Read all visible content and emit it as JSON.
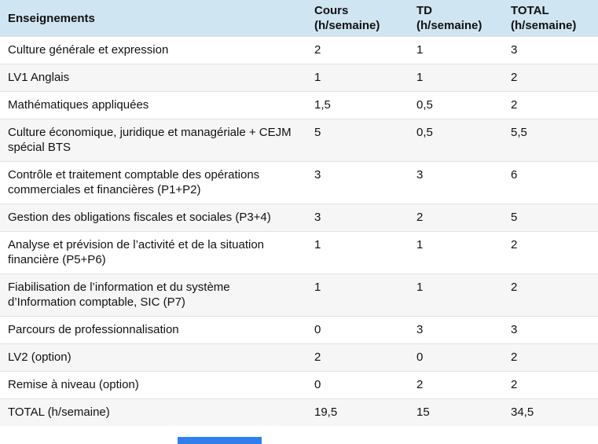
{
  "colors": {
    "header_bg": "#cfe5f1",
    "row_alt_bg": "#f6f6f6",
    "divider": "#e2e2e2",
    "text": "#111111",
    "scroll_indicator": "#2f80ed"
  },
  "table": {
    "headers": {
      "enseignements": "Enseignements",
      "cours": "Cours (h/semaine)",
      "td": "TD (h/semaine)",
      "total": "TOTAL (h/semaine)"
    },
    "rows": [
      {
        "label": "Culture générale et expression",
        "cours": "2",
        "td": "1",
        "total": "3"
      },
      {
        "label": "LV1 Anglais",
        "cours": "1",
        "td": "1",
        "total": "2"
      },
      {
        "label": "Mathématiques appliquées",
        "cours": "1,5",
        "td": "0,5",
        "total": "2"
      },
      {
        "label": "Culture économique, juridique et managériale + CEJM spécial BTS",
        "cours": "5",
        "td": "0,5",
        "total": "5,5"
      },
      {
        "label": "Contrôle et traitement comptable des opérations commerciales et financières (P1+P2)",
        "cours": "3",
        "td": "3",
        "total": "6"
      },
      {
        "label": "Gestion des obligations fiscales et sociales (P3+4)",
        "cours": "3",
        "td": "2",
        "total": "5"
      },
      {
        "label": "Analyse et prévision de l’activité et de la situation financière (P5+P6)",
        "cours": "1",
        "td": "1",
        "total": "2"
      },
      {
        "label": "Fiabilisation de l’information et du système d’Information comptable, SIC (P7)",
        "cours": "1",
        "td": "1",
        "total": "2"
      },
      {
        "label": "Parcours de professionnalisation",
        "cours": "0",
        "td": "3",
        "total": "3"
      },
      {
        "label": "LV2 (option)",
        "cours": "2",
        "td": "0",
        "total": "2"
      },
      {
        "label": "Remise à niveau (option)",
        "cours": "0",
        "td": "2",
        "total": "2"
      },
      {
        "label": "TOTAL (h/semaine)",
        "cours": "19,5",
        "td": "15",
        "total": "34,5"
      }
    ]
  }
}
